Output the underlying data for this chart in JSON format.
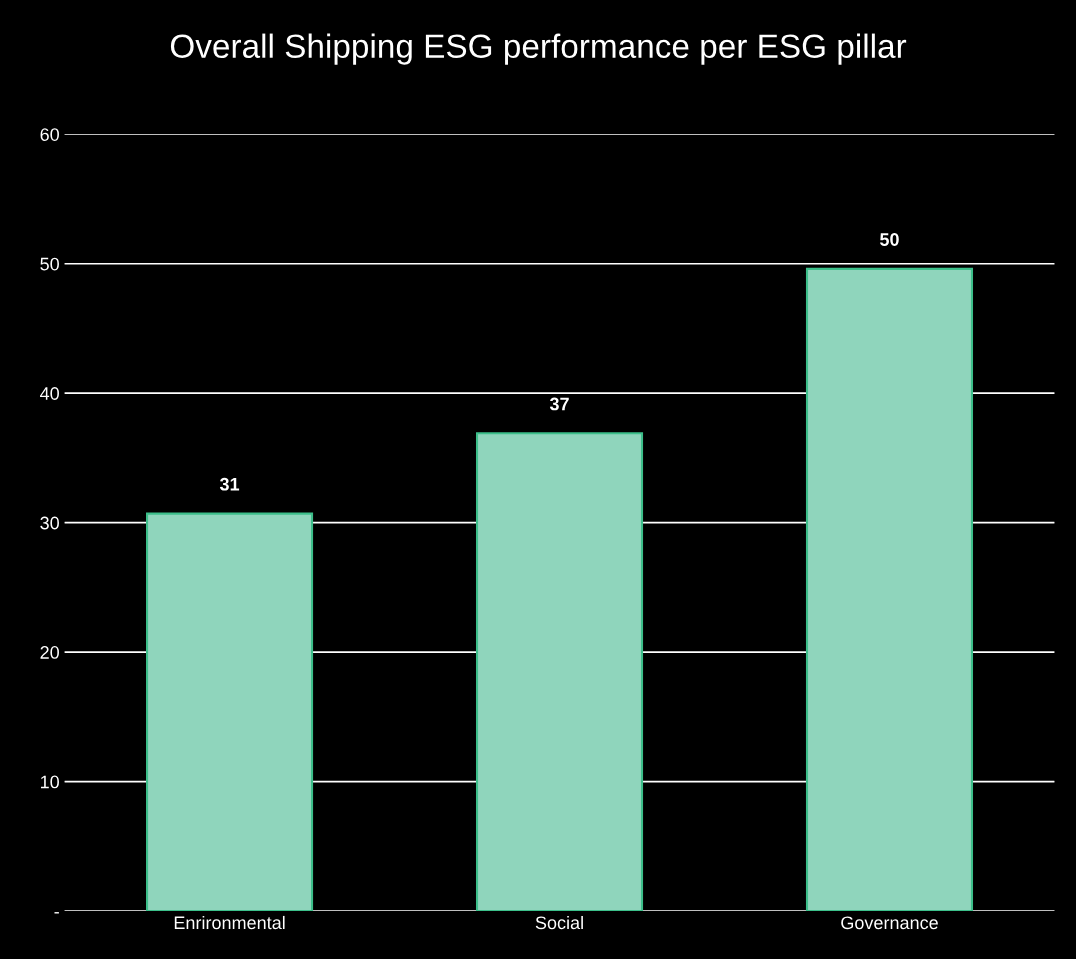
{
  "chart_data": {
    "type": "bar",
    "title": "Overall Shipping ESG performance per ESG pillar",
    "categories": [
      "Enrironmental",
      "Social",
      "Governance"
    ],
    "values": [
      30.7,
      36.9,
      49.6
    ],
    "value_labels": [
      "31",
      "37",
      "50"
    ],
    "color": "#8fd5bc",
    "ylim": [
      0,
      60
    ],
    "yticks": [
      {
        "value": 0,
        "label": "-"
      },
      10,
      20,
      30,
      40,
      50,
      60
    ],
    "grid": "y"
  }
}
